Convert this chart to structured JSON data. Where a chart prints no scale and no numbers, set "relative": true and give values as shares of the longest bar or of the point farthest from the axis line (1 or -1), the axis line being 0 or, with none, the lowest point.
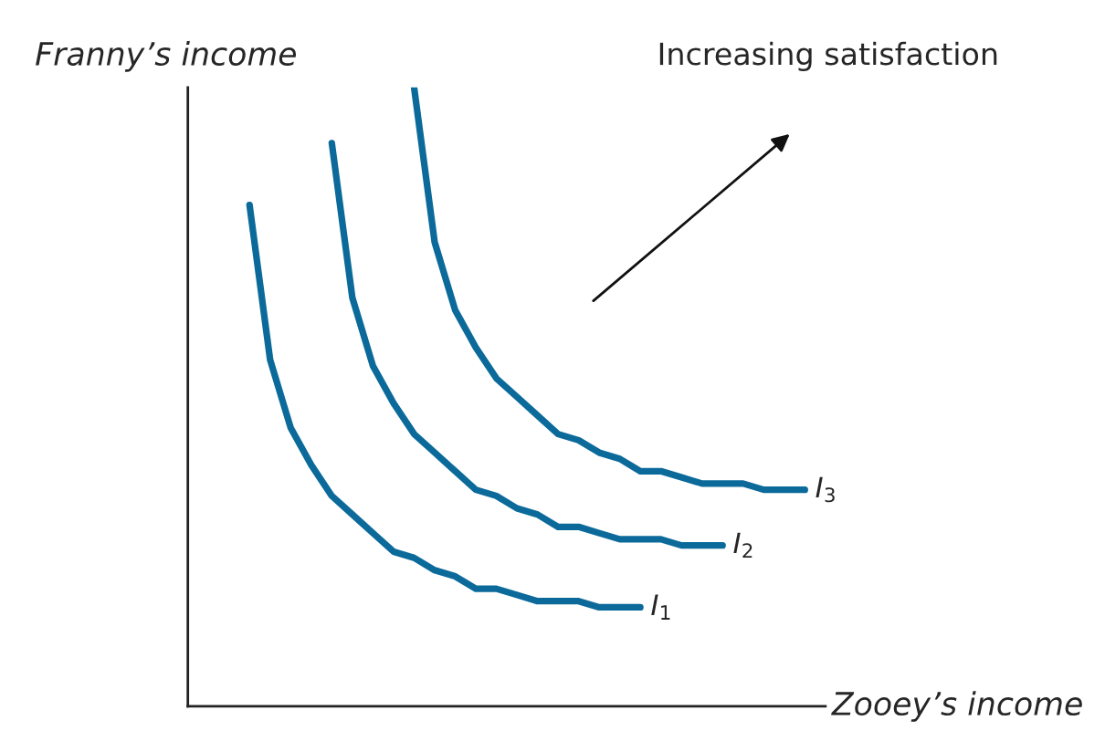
{
  "chart_data": {
    "type": "line",
    "relative": true,
    "xlabel": "Zooey’s income",
    "ylabel": "Franny’s income",
    "annotations": [
      "Increasing satisfaction"
    ],
    "categories": [
      null,
      null,
      null,
      null,
      null,
      null,
      null,
      null,
      null,
      null,
      null,
      null,
      null,
      null,
      null,
      null,
      null,
      null,
      null,
      null,
      null,
      null,
      null,
      null,
      null,
      null,
      null,
      null,
      null,
      null,
      null,
      null
    ],
    "series": [
      {
        "name": "I$_{1}$",
        "color": "#0b6a9a",
        "values": [
          null,
          null,
          null,
          0.81,
          0.56,
          0.45,
          0.39,
          0.34,
          0.31,
          0.28,
          0.25,
          0.24,
          0.22,
          0.21,
          0.19,
          0.19,
          0.18,
          0.17,
          0.17,
          0.17,
          0.16,
          0.16,
          0.16,
          null,
          null,
          null,
          null,
          null,
          null,
          null,
          null,
          null
        ]
      },
      {
        "name": "I$_{2}$",
        "color": "#0b6a9a",
        "values": [
          null,
          null,
          null,
          null,
          null,
          null,
          null,
          0.91,
          0.66,
          0.55,
          0.49,
          0.44,
          0.41,
          0.38,
          0.35,
          0.34,
          0.32,
          0.31,
          0.29,
          0.29,
          0.28,
          0.27,
          0.27,
          0.27,
          0.26,
          0.26,
          0.26,
          null,
          null,
          null,
          null,
          null
        ]
      },
      {
        "name": "I$_{3}$",
        "color": "#0b6a9a",
        "values": [
          null,
          null,
          null,
          null,
          null,
          null,
          null,
          null,
          null,
          null,
          null,
          1.0,
          0.75,
          0.64,
          0.58,
          0.53,
          0.5,
          0.47,
          0.44,
          0.43,
          0.41,
          0.4,
          0.38,
          0.38,
          0.37,
          0.36,
          0.36,
          0.36,
          0.35,
          0.35,
          0.35,
          null
        ]
      }
    ]
  }
}
